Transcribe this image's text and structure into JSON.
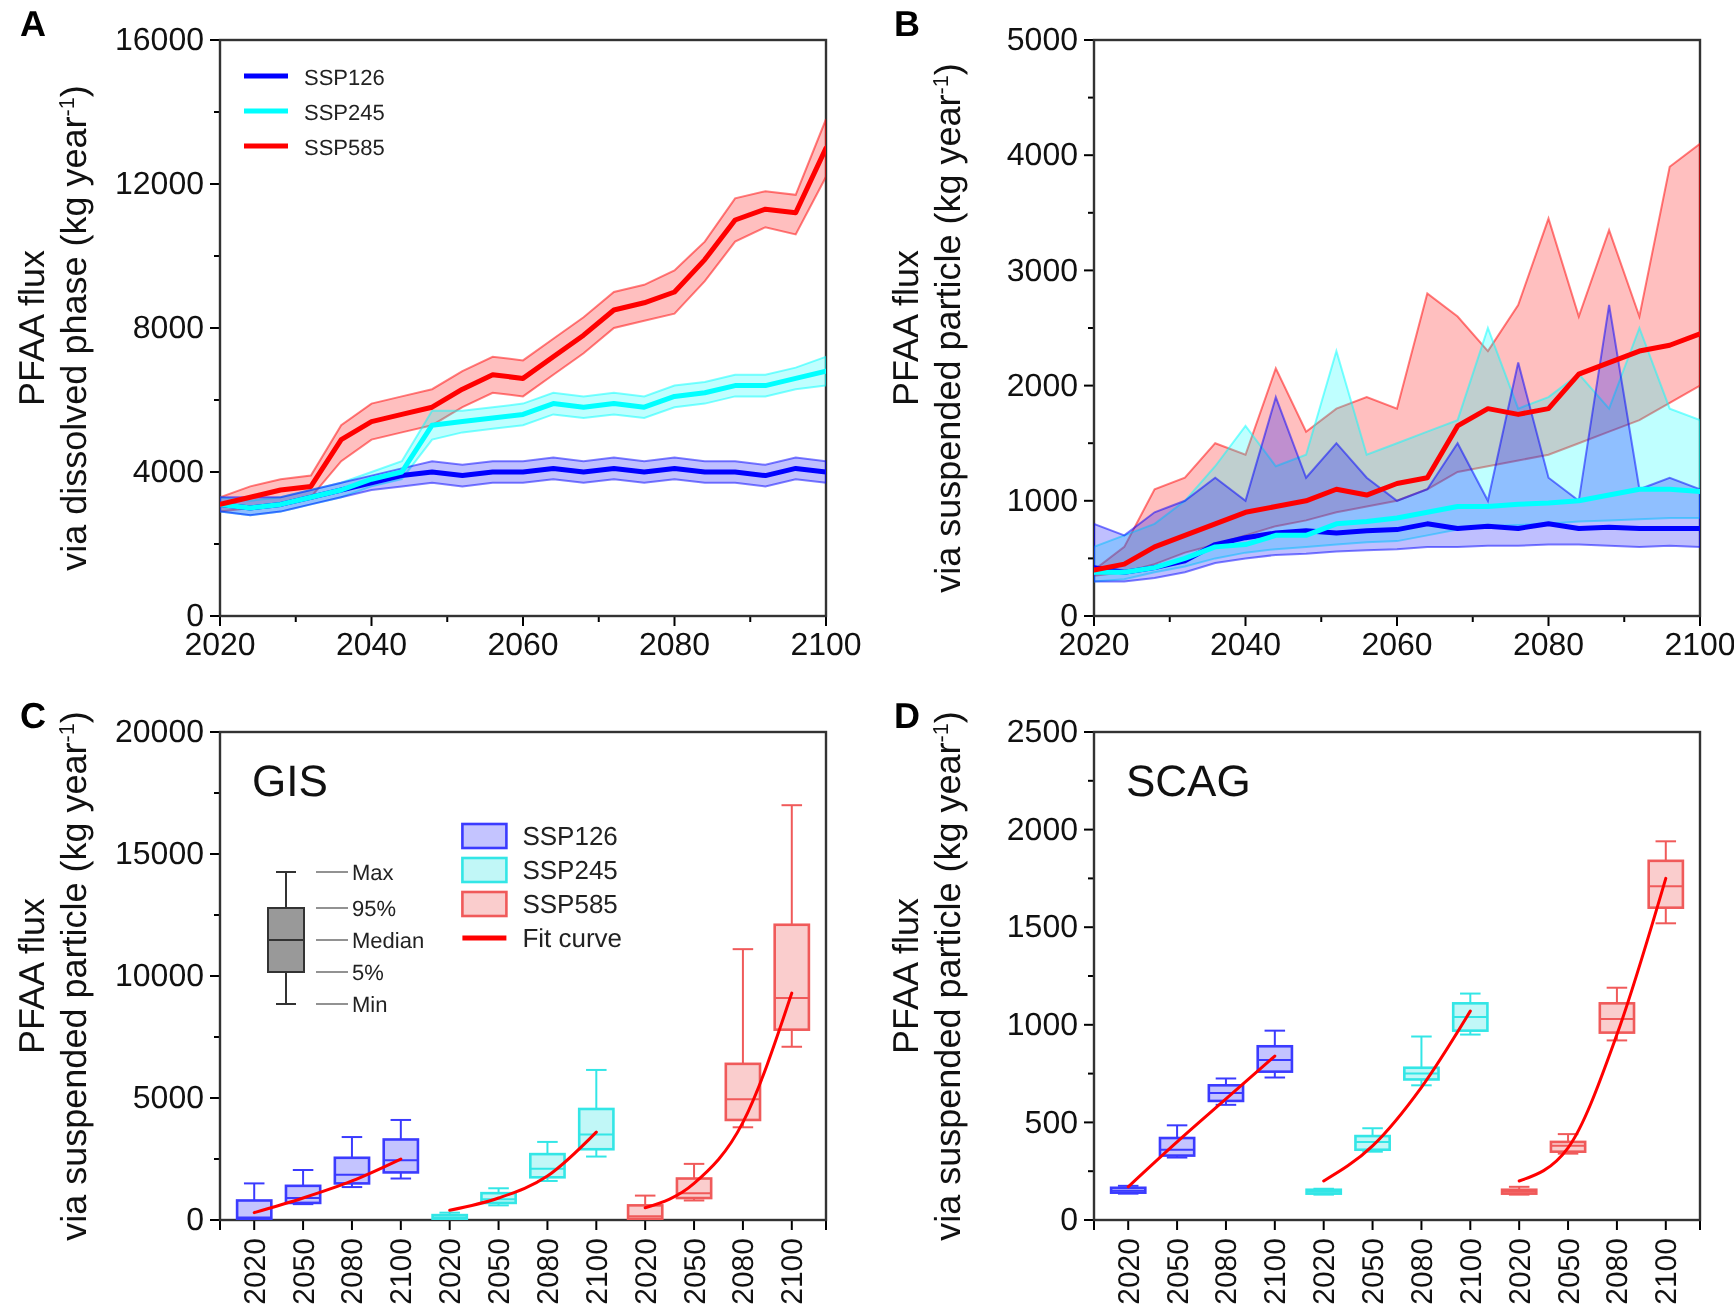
{
  "chart_data": [
    {
      "type": "line",
      "ylabel": "PFAA flux\nvia dissolved phase (kg year$^{-1}$)",
      "annotations": [
        "A"
      ],
      "legend": "top left",
      "x": [
        2020,
        2024,
        2028,
        2032,
        2036,
        2040,
        2044,
        2048,
        2052,
        2056,
        2060,
        2064,
        2068,
        2072,
        2076,
        2080,
        2084,
        2088,
        2092,
        2096,
        2100
      ],
      "xlim": [
        2020,
        2100
      ],
      "xticks": [
        2020,
        {
          "value": 2030,
          "label": null
        },
        2040,
        {
          "value": 2050,
          "label": null
        },
        2060,
        {
          "value": 2070,
          "label": null
        },
        2080,
        {
          "value": 2090,
          "label": null
        },
        2100
      ],
      "ylim": [
        0,
        16000
      ],
      "yticks": [
        0,
        {
          "value": 2000,
          "label": null
        },
        4000,
        {
          "value": 6000,
          "label": null
        },
        8000,
        {
          "value": 10000,
          "label": null
        },
        12000,
        {
          "value": 14000,
          "label": null
        },
        16000
      ],
      "series": [
        {
          "name": "SSP126",
          "color": "#0000ff",
          "values": [
            3100,
            3000,
            3100,
            3300,
            3500,
            3700,
            3900,
            4000,
            3900,
            4000,
            4000,
            4100,
            4000,
            4100,
            4000,
            4100,
            4000,
            4000,
            3900,
            4100,
            4000
          ],
          "lower": [
            2900,
            2800,
            2900,
            3100,
            3300,
            3500,
            3600,
            3700,
            3600,
            3700,
            3700,
            3800,
            3700,
            3800,
            3700,
            3800,
            3700,
            3700,
            3600,
            3800,
            3700
          ],
          "upper": [
            3300,
            3300,
            3300,
            3500,
            3700,
            3900,
            4100,
            4300,
            4200,
            4300,
            4300,
            4400,
            4300,
            4400,
            4300,
            4400,
            4300,
            4300,
            4200,
            4400,
            4300
          ]
        },
        {
          "name": "SSP245",
          "color": "#00ffff",
          "values": [
            3100,
            3000,
            3100,
            3300,
            3500,
            3800,
            4000,
            5300,
            5400,
            5500,
            5600,
            5900,
            5800,
            5900,
            5800,
            6100,
            6200,
            6400,
            6400,
            6600,
            6800
          ],
          "lower": [
            2900,
            2800,
            2900,
            3100,
            3300,
            3600,
            3800,
            4900,
            5100,
            5200,
            5300,
            5600,
            5500,
            5600,
            5500,
            5800,
            5900,
            6100,
            6100,
            6300,
            6400
          ],
          "upper": [
            3300,
            3200,
            3300,
            3500,
            3700,
            4000,
            4300,
            5700,
            5700,
            5800,
            5900,
            6200,
            6100,
            6200,
            6100,
            6400,
            6500,
            6700,
            6700,
            6900,
            7200
          ]
        },
        {
          "name": "SSP585",
          "color": "#ff0000",
          "values": [
            3100,
            3300,
            3500,
            3600,
            4900,
            5400,
            5600,
            5800,
            6300,
            6700,
            6600,
            7200,
            7800,
            8500,
            8700,
            9000,
            9900,
            11000,
            11300,
            11200,
            13000
          ],
          "lower": [
            2900,
            3000,
            3100,
            3300,
            4300,
            4900,
            5100,
            5300,
            5800,
            6200,
            6100,
            6700,
            7300,
            8000,
            8200,
            8400,
            9300,
            10400,
            10800,
            10600,
            12200
          ],
          "upper": [
            3300,
            3600,
            3800,
            3900,
            5300,
            5900,
            6100,
            6300,
            6800,
            7200,
            7100,
            7700,
            8300,
            9000,
            9200,
            9600,
            10400,
            11600,
            11800,
            11700,
            13800
          ]
        }
      ]
    },
    {
      "type": "line",
      "ylabel": "PFAA flux\nvia suspended particle (kg year$^{-1}$)",
      "annotations": [
        "B"
      ],
      "x": [
        2020,
        2024,
        2028,
        2032,
        2036,
        2040,
        2044,
        2048,
        2052,
        2056,
        2060,
        2064,
        2068,
        2072,
        2076,
        2080,
        2084,
        2088,
        2092,
        2096,
        2100
      ],
      "xlim": [
        2020,
        2100
      ],
      "xticks": [
        2020,
        {
          "value": 2030,
          "label": null
        },
        2040,
        {
          "value": 2050,
          "label": null
        },
        2060,
        {
          "value": 2070,
          "label": null
        },
        2080,
        {
          "value": 2090,
          "label": null
        },
        2100
      ],
      "ylim": [
        0,
        5000
      ],
      "yticks": [
        0,
        {
          "value": 500,
          "label": null
        },
        1000,
        {
          "value": 1500,
          "label": null
        },
        2000,
        {
          "value": 2500,
          "label": null
        },
        3000,
        {
          "value": 3500,
          "label": null
        },
        4000,
        {
          "value": 4500,
          "label": null
        },
        5000
      ],
      "series": [
        {
          "color": "#0000ff",
          "values": [
            420,
            380,
            420,
            480,
            620,
            680,
            720,
            740,
            720,
            740,
            750,
            800,
            760,
            780,
            760,
            800,
            760,
            770,
            760,
            760,
            760
          ],
          "lower": [
            300,
            300,
            330,
            380,
            460,
            500,
            530,
            540,
            560,
            570,
            580,
            600,
            600,
            610,
            610,
            620,
            620,
            610,
            600,
            610,
            600
          ],
          "upper": [
            800,
            700,
            900,
            1000,
            1200,
            1000,
            1900,
            1200,
            1500,
            1200,
            1000,
            1100,
            1500,
            1000,
            2200,
            1200,
            1000,
            2700,
            1100,
            1200,
            1100
          ]
        },
        {
          "color": "#00ffff",
          "values": [
            380,
            380,
            420,
            500,
            600,
            620,
            700,
            700,
            800,
            820,
            850,
            900,
            950,
            950,
            970,
            980,
            1000,
            1050,
            1100,
            1100,
            1080
          ],
          "lower": [
            300,
            320,
            380,
            430,
            500,
            550,
            580,
            600,
            620,
            640,
            650,
            700,
            750,
            780,
            790,
            800,
            820,
            830,
            840,
            850,
            850
          ],
          "upper": [
            600,
            700,
            800,
            1000,
            1300,
            1650,
            1300,
            1400,
            2300,
            1400,
            1500,
            1600,
            1700,
            2500,
            1800,
            1900,
            2100,
            1800,
            2500,
            1800,
            1700
          ]
        },
        {
          "color": "#ff0000",
          "values": [
            400,
            450,
            600,
            700,
            800,
            900,
            950,
            1000,
            1100,
            1050,
            1150,
            1200,
            1650,
            1800,
            1750,
            1800,
            2100,
            2200,
            2300,
            2350,
            2450
          ],
          "lower": [
            350,
            380,
            450,
            550,
            620,
            700,
            780,
            830,
            900,
            950,
            1000,
            1100,
            1250,
            1300,
            1350,
            1400,
            1500,
            1600,
            1700,
            1850,
            2000
          ],
          "upper": [
            400,
            600,
            1100,
            1200,
            1500,
            1400,
            2150,
            1600,
            1800,
            1900,
            1800,
            2800,
            2600,
            2300,
            2700,
            3450,
            2600,
            3350,
            2600,
            3900,
            4100
          ]
        }
      ]
    },
    {
      "type": "box",
      "title": "GIS",
      "ylabel": "PFAA flux\nvia suspended particle (kg year$^{-1}$)",
      "annotations": [
        "C",
        "Max",
        "95%",
        "Median",
        "5%",
        "Min"
      ],
      "legend": "top",
      "categories": [
        "2020",
        "2050",
        "2080",
        "2100",
        "2020",
        "2050",
        "2080",
        "2100",
        "2020",
        "2050",
        "2080",
        "2100"
      ],
      "ylim": [
        0,
        20000
      ],
      "yticks": [
        0,
        {
          "value": 2500,
          "label": null
        },
        5000,
        {
          "value": 7500,
          "label": null
        },
        10000,
        {
          "value": 12500,
          "label": null
        },
        15000,
        {
          "value": 17500,
          "label": null
        },
        20000
      ],
      "series": [
        {
          "name": "SSP126",
          "color": "#3b3bff",
          "boxes": [
            {
              "low": 0,
              "q1": 50,
              "median": 100,
              "q3": 800,
              "high": 1500
            },
            {
              "low": 650,
              "q1": 700,
              "median": 900,
              "q3": 1400,
              "high": 2050
            },
            {
              "low": 1350,
              "q1": 1500,
              "median": 1850,
              "q3": 2550,
              "high": 3400
            },
            {
              "low": 1700,
              "q1": 1950,
              "median": 2450,
              "q3": 3300,
              "high": 4100
            },
            null,
            null,
            null,
            null,
            null,
            null,
            null,
            null
          ]
        },
        {
          "name": "SSP245",
          "color": "#33e6e6",
          "boxes": [
            null,
            null,
            null,
            null,
            {
              "low": 0,
              "q1": 50,
              "median": 100,
              "q3": 200,
              "high": 300
            },
            {
              "low": 600,
              "q1": 700,
              "median": 850,
              "q3": 1100,
              "high": 1300
            },
            {
              "low": 1600,
              "q1": 1750,
              "median": 2100,
              "q3": 2700,
              "high": 3200
            },
            {
              "low": 2600,
              "q1": 2900,
              "median": 3500,
              "q3": 4550,
              "high": 6150
            },
            null,
            null,
            null,
            null
          ]
        },
        {
          "name": "SSP585",
          "color": "#f05a5a",
          "boxes": [
            null,
            null,
            null,
            null,
            null,
            null,
            null,
            null,
            {
              "low": 0,
              "q1": 50,
              "median": 150,
              "q3": 600,
              "high": 1000
            },
            {
              "low": 800,
              "q1": 900,
              "median": 1100,
              "q3": 1700,
              "high": 2300
            },
            {
              "low": 3800,
              "q1": 4100,
              "median": 4950,
              "q3": 6400,
              "high": 11100
            },
            {
              "low": 7100,
              "q1": 7800,
              "median": 9100,
              "q3": 12100,
              "high": 17000
            }
          ]
        },
        {
          "name": "Fit curve",
          "type": "line",
          "color": "#ff0000",
          "values": [
            300,
            900,
            1600,
            2500,
            null,
            null,
            null,
            null,
            null,
            null,
            null,
            null
          ]
        },
        {
          "type": "line",
          "color": "#ff0000",
          "values": [
            null,
            null,
            null,
            null,
            400,
            900,
            1800,
            3600,
            null,
            null,
            null,
            null
          ]
        },
        {
          "type": "line",
          "color": "#ff0000",
          "values": [
            null,
            null,
            null,
            null,
            null,
            null,
            null,
            null,
            500,
            1500,
            4000,
            9300
          ]
        }
      ]
    },
    {
      "type": "box",
      "title": "SCAG",
      "ylabel": "PFAA flux\nvia suspended particle (kg year$^{-1}$)",
      "annotations": [
        "D"
      ],
      "categories": [
        "2020",
        "2050",
        "2080",
        "2100",
        "2020",
        "2050",
        "2080",
        "2100",
        "2020",
        "2050",
        "2080",
        "2100"
      ],
      "ylim": [
        0,
        2500
      ],
      "yticks": [
        0,
        {
          "value": 250,
          "label": null
        },
        500,
        {
          "value": 750,
          "label": null
        },
        1000,
        {
          "value": 1250,
          "label": null
        },
        1500,
        {
          "value": 1750,
          "label": null
        },
        2000,
        {
          "value": 2250,
          "label": null
        },
        2500
      ],
      "series": [
        {
          "color": "#3b3bff",
          "boxes": [
            {
              "low": 135,
              "q1": 140,
              "median": 150,
              "q3": 165,
              "high": 175
            },
            {
              "low": 320,
              "q1": 330,
              "median": 360,
              "q3": 420,
              "high": 485
            },
            {
              "low": 590,
              "q1": 610,
              "median": 650,
              "q3": 690,
              "high": 725
            },
            {
              "low": 730,
              "q1": 760,
              "median": 820,
              "q3": 890,
              "high": 970
            },
            null,
            null,
            null,
            null,
            null,
            null,
            null,
            null
          ]
        },
        {
          "color": "#33e6e6",
          "boxes": [
            null,
            null,
            null,
            null,
            {
              "low": 130,
              "q1": 135,
              "median": 145,
              "q3": 155,
              "high": 160
            },
            {
              "low": 350,
              "q1": 360,
              "median": 400,
              "q3": 430,
              "high": 470
            },
            {
              "low": 690,
              "q1": 720,
              "median": 750,
              "q3": 780,
              "high": 940
            },
            {
              "low": 950,
              "q1": 970,
              "median": 1040,
              "q3": 1110,
              "high": 1160
            },
            null,
            null,
            null,
            null
          ]
        },
        {
          "color": "#f05a5a",
          "boxes": [
            null,
            null,
            null,
            null,
            null,
            null,
            null,
            null,
            {
              "low": 130,
              "q1": 135,
              "median": 145,
              "q3": 155,
              "high": 170
            },
            {
              "low": 340,
              "q1": 350,
              "median": 380,
              "q3": 400,
              "high": 440
            },
            {
              "low": 920,
              "q1": 960,
              "median": 1030,
              "q3": 1110,
              "high": 1190
            },
            {
              "low": 1520,
              "q1": 1600,
              "median": 1710,
              "q3": 1840,
              "high": 1940
            }
          ]
        },
        {
          "type": "line",
          "color": "#ff0000",
          "values": [
            170,
            400,
            620,
            840,
            null,
            null,
            null,
            null,
            null,
            null,
            null,
            null
          ]
        },
        {
          "type": "line",
          "color": "#ff0000",
          "values": [
            null,
            null,
            null,
            null,
            200,
            380,
            680,
            1070,
            null,
            null,
            null,
            null
          ]
        },
        {
          "type": "line",
          "color": "#ff0000",
          "values": [
            null,
            null,
            null,
            null,
            null,
            null,
            null,
            null,
            200,
            370,
            950,
            1750
          ]
        }
      ]
    }
  ]
}
